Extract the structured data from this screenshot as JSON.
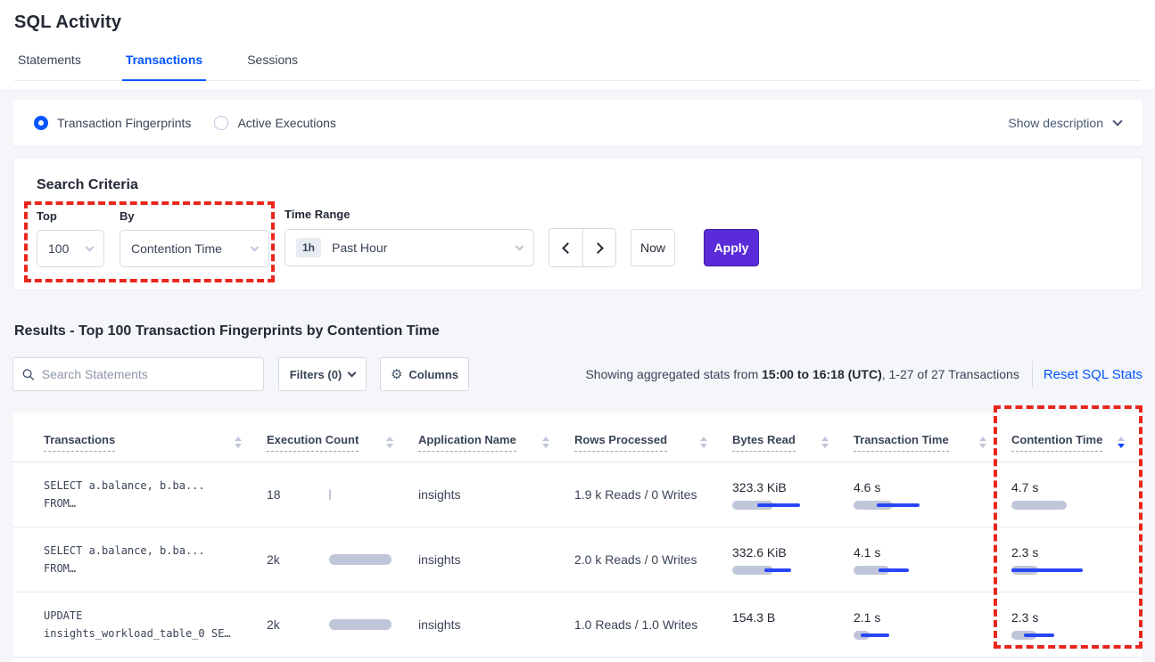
{
  "page": {
    "title": "SQL Activity"
  },
  "tabs": [
    {
      "label": "Statements"
    },
    {
      "label": "Transactions"
    },
    {
      "label": "Sessions"
    }
  ],
  "view_toggle": {
    "fingerprints_label": "Transaction Fingerprints",
    "active_exec_label": "Active Executions",
    "show_description_label": "Show description"
  },
  "search_criteria": {
    "heading": "Search Criteria",
    "top_label": "Top",
    "top_value": "100",
    "by_label": "By",
    "by_value": "Contention Time",
    "time_range_label": "Time Range",
    "time_range_badge": "1h",
    "time_range_value": "Past Hour",
    "now_label": "Now",
    "apply_label": "Apply"
  },
  "results": {
    "heading": "Results - Top 100 Transaction Fingerprints by Contention Time",
    "search_placeholder": "Search Statements",
    "filters_label": "Filters (0)",
    "columns_label": "Columns",
    "gear_icon": "⚙",
    "stats_prefix": "Showing aggregated stats from ",
    "stats_bold": "15:00 to 16:18 (UTC)",
    "stats_suffix": ", 1-27 of 27 Transactions",
    "reset_label": "Reset SQL Stats"
  },
  "table": {
    "headers": [
      {
        "label": "Transactions",
        "sort": "none"
      },
      {
        "label": "Execution Count",
        "sort": "none"
      },
      {
        "label": "Application Name",
        "sort": "none"
      },
      {
        "label": "Rows Processed",
        "sort": "none"
      },
      {
        "label": "Bytes Read",
        "sort": "none"
      },
      {
        "label": "Transaction Time",
        "sort": "none"
      },
      {
        "label": "Contention Time",
        "sort": "desc"
      }
    ],
    "rows": [
      {
        "transaction_line1": "SELECT a.balance, b.ba...",
        "transaction_line2": "FROM…",
        "execution_count": "18",
        "execution_bar": 2,
        "application_name": "insights",
        "rows_processed": "1.9 k Reads / 0 Writes",
        "bytes_read": {
          "value": "323.3 KiB",
          "bar": 46,
          "line_start": 28,
          "line_end": 76
        },
        "transaction_time": {
          "value": "4.6 s",
          "bar": 44,
          "line_start": 26,
          "line_end": 74
        },
        "contention_time": {
          "value": "4.7 s",
          "bar": 62,
          "line_start": 0,
          "line_end": 0
        }
      },
      {
        "transaction_line1": "SELECT a.balance, b.ba...",
        "transaction_line2": "FROM…",
        "execution_count": "2k",
        "execution_bar": 70,
        "application_name": "insights",
        "rows_processed": "2.0 k Reads / 0 Writes",
        "bytes_read": {
          "value": "332.6 KiB",
          "bar": 46,
          "line_start": 36,
          "line_end": 66
        },
        "transaction_time": {
          "value": "4.1 s",
          "bar": 40,
          "line_start": 28,
          "line_end": 62
        },
        "contention_time": {
          "value": "2.3 s",
          "bar": 30,
          "line_start": 0,
          "line_end": 80
        }
      },
      {
        "transaction_line1": "UPDATE",
        "transaction_line2": "insights_workload_table_0 SE…",
        "execution_count": "2k",
        "execution_bar": 70,
        "application_name": "insights",
        "rows_processed": "1.0 Reads / 1.0 Writes",
        "bytes_read": {
          "value": "154.3 B",
          "bar": 0,
          "line_start": 0,
          "line_end": 0
        },
        "transaction_time": {
          "value": "2.1 s",
          "bar": 18,
          "line_start": 8,
          "line_end": 40
        },
        "contention_time": {
          "value": "2.3 s",
          "bar": 28,
          "line_start": 14,
          "line_end": 48
        }
      }
    ]
  },
  "colors": {
    "accent_blue": "#0055ff",
    "apply_purple": "#5a2bd9",
    "annotation_red": "#e8261d",
    "bar_gray": "#c0c6d9",
    "bar_line_blue": "#2946f5"
  }
}
